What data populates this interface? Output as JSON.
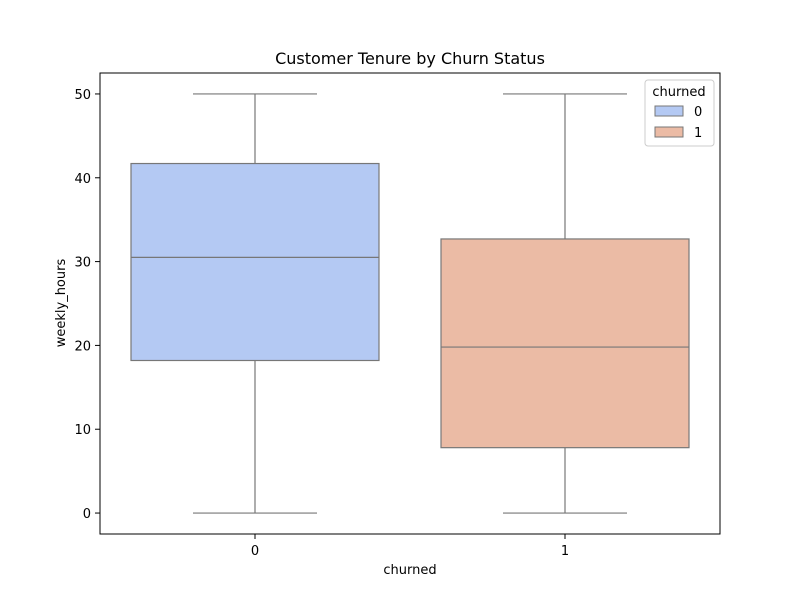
{
  "chart_data": {
    "type": "box",
    "title": "Customer Tenure by Churn Status",
    "xlabel": "churned",
    "ylabel": "weekly_hours",
    "ylim": [
      -2.5,
      52.5
    ],
    "yticks": [
      0,
      10,
      20,
      30,
      40,
      50
    ],
    "grid": false,
    "categories": [
      "0",
      "1"
    ],
    "boxes": [
      {
        "category": "0",
        "whisker_low": 0,
        "q1": 18.2,
        "median": 30.5,
        "q3": 41.7,
        "whisker_high": 50,
        "color": "#b4c9f3"
      },
      {
        "category": "1",
        "whisker_low": 0,
        "q1": 7.8,
        "median": 19.8,
        "q3": 32.7,
        "whisker_high": 50,
        "color": "#ebbba5"
      }
    ],
    "legend": {
      "title": "churned",
      "placement": "top-right",
      "entries": [
        {
          "label": "0",
          "color": "#b4c9f3"
        },
        {
          "label": "1",
          "color": "#ebbba5"
        }
      ]
    },
    "line_color": "#777777"
  }
}
